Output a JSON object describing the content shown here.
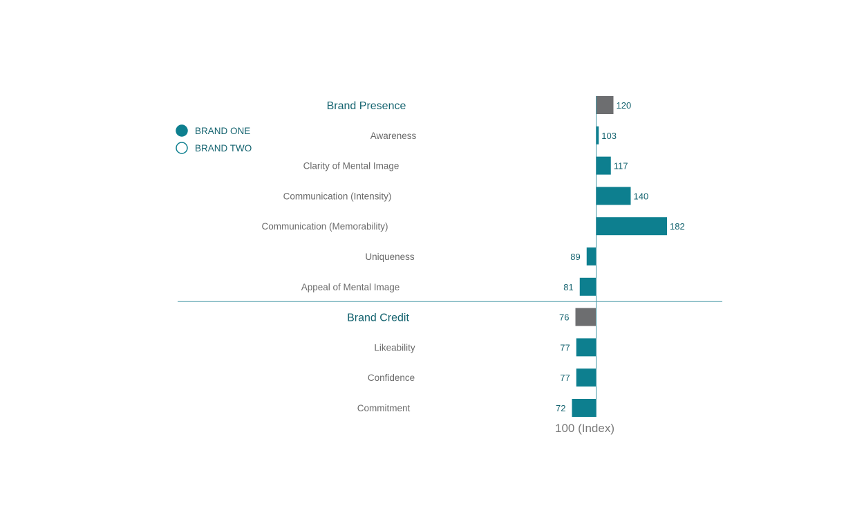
{
  "chart_data": {
    "type": "bar",
    "orientation": "horizontal",
    "baseline": 100,
    "baseline_label": "100 (Index)",
    "legend": {
      "placement": "top-left",
      "items": [
        {
          "label": "BRAND ONE",
          "style": "filled"
        },
        {
          "label": "BRAND TWO",
          "style": "outline"
        }
      ]
    },
    "groups": [
      {
        "name": "Brand Presence",
        "value": 120,
        "items": [
          {
            "label": "Awareness",
            "value": 103
          },
          {
            "label": "Clarity of Mental Image",
            "value": 117
          },
          {
            "label": "Communication (Intensity)",
            "value": 140
          },
          {
            "label": "Communication (Memorability)",
            "value": 182
          },
          {
            "label": "Uniqueness",
            "value": 89
          },
          {
            "label": "Appeal of Mental Image",
            "value": 81
          }
        ]
      },
      {
        "name": "Brand Credit",
        "value": 76,
        "items": [
          {
            "label": "Likeability",
            "value": 77
          },
          {
            "label": "Confidence",
            "value": 77
          },
          {
            "label": "Commitment",
            "value": 72
          }
        ]
      }
    ],
    "colors": {
      "item_bar": "#0d7f8f",
      "group_bar": "#6d6e70",
      "axis": "#4a9aa8",
      "group_label": "#14636f",
      "item_label": "#6a6a6a",
      "value_label": "#14636f",
      "legend_text": "#14636f",
      "baseline_label": "#7a7a7a"
    }
  }
}
